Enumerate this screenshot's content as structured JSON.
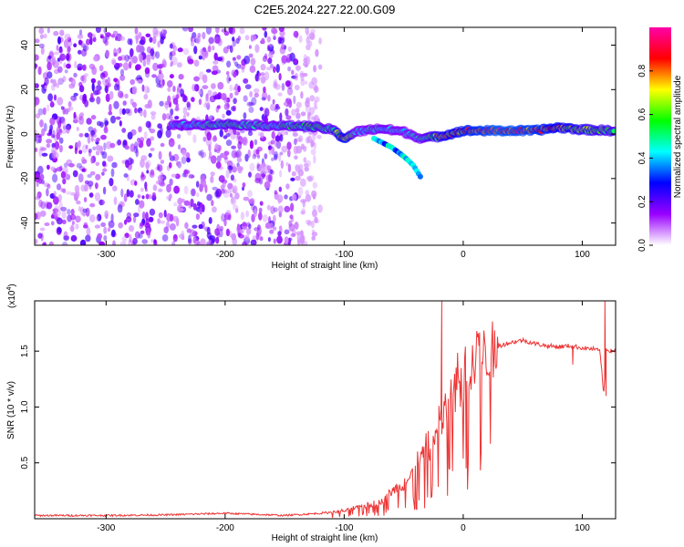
{
  "figure_title": "C2E5.2024.227.22.00.G09",
  "chart_data": [
    {
      "type": "heatmap",
      "title": "C2E5.2024.227.22.00.G09",
      "xlabel": "Height of straight line (km)",
      "ylabel": "Frequency (Hz)",
      "xlim": [
        -360,
        128
      ],
      "ylim": [
        -50,
        48
      ],
      "xticks": [
        -300,
        -200,
        -100,
        0,
        100
      ],
      "yticks": [
        -40,
        -20,
        0,
        20,
        40
      ],
      "colorbar": {
        "label": "Normalized spectral amplitude",
        "range": [
          0.0,
          1.0
        ],
        "ticks": [
          0.0,
          0.2,
          0.4,
          0.6,
          0.8
        ],
        "tick_labels": [
          "0.0",
          "0.2",
          "0.4",
          "0.6",
          "0.8"
        ],
        "colormap": [
          "#ffffff",
          "#9900ff",
          "#0000ff",
          "#00ffff",
          "#00ff00",
          "#ffff00",
          "#ff0000",
          "#ff00aa"
        ]
      },
      "features": {
        "noise_region_x": [
          -360,
          -140
        ],
        "main_ridge": {
          "x": [
            -245,
            -200,
            -160,
            -130,
            -110,
            -100,
            -90,
            -70,
            -50,
            -35,
            -20,
            0,
            30,
            60,
            80,
            100,
            128
          ],
          "y": [
            4,
            4.5,
            3.8,
            3.5,
            2,
            -2,
            1,
            2.5,
            1,
            -2,
            -1,
            1.5,
            1.5,
            1.5,
            3,
            2,
            1.5
          ],
          "amplitude": [
            0.45,
            0.55,
            0.5,
            0.6,
            0.55,
            0.85,
            0.45,
            0.5,
            0.45,
            0.5,
            0.75,
            0.85,
            0.95,
            0.9,
            0.8,
            0.7,
            0.6
          ]
        },
        "secondary_branch": {
          "x": [
            -75,
            -60,
            -50,
            -42,
            -35
          ],
          "y": [
            -2,
            -6,
            -10,
            -14,
            -20
          ]
        }
      }
    },
    {
      "type": "line",
      "xlabel": "Height of straight line (km)",
      "ylabel": "SNR (10 * v/v)",
      "y_multiplier": "(x10",
      "y_multiplier_exp": "4",
      "xlim": [
        -360,
        128
      ],
      "ylim": [
        0.0,
        1.95
      ],
      "xticks": [
        -300,
        -200,
        -100,
        0,
        100
      ],
      "yticks": [
        0.5,
        1.0,
        1.5
      ],
      "ytick_labels": [
        "0.5",
        "1.0",
        "1.5"
      ],
      "color": "#ee3333",
      "series": [
        {
          "name": "SNR",
          "x": [
            -360,
            -300,
            -250,
            -200,
            -150,
            -120,
            -100,
            -90,
            -80,
            -70,
            -60,
            -50,
            -40,
            -30,
            -25,
            -20,
            -15,
            -10,
            -5,
            0,
            10,
            20,
            30,
            40,
            50,
            60,
            70,
            80,
            90,
            100,
            110,
            115,
            118,
            120,
            125,
            128
          ],
          "y": [
            0.03,
            0.03,
            0.035,
            0.05,
            0.03,
            0.05,
            0.07,
            0.1,
            0.12,
            0.15,
            0.25,
            0.3,
            0.45,
            0.6,
            0.7,
            0.85,
            0.95,
            1.1,
            1.2,
            1.25,
            1.45,
            1.5,
            1.55,
            1.58,
            1.6,
            1.57,
            1.55,
            1.54,
            1.55,
            1.53,
            1.52,
            1.5,
            1.1,
            1.52,
            1.5,
            1.52
          ],
          "spikes": [
            {
              "x": -18,
              "y": 1.95
            },
            {
              "x": 92,
              "y": 1.38
            },
            {
              "x": 119,
              "y": 1.95
            },
            {
              "x": 120,
              "y": 1.1
            }
          ]
        }
      ]
    }
  ]
}
